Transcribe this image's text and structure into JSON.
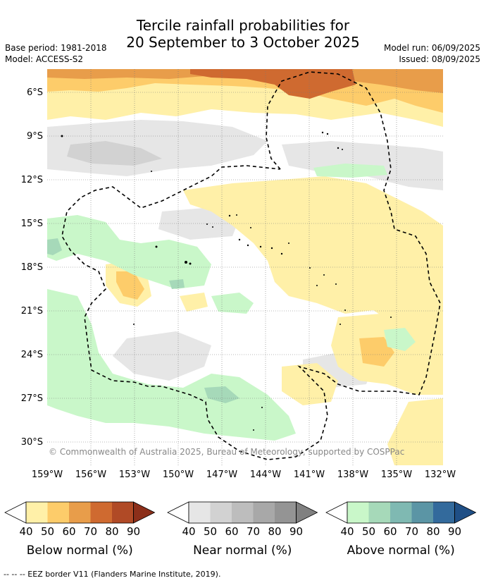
{
  "title_line1": "Tercile rainfall probabilities for",
  "title_line2": "20 September to 3 October 2025",
  "base_period": "Base period: 1981-2018",
  "model": "Model: ACCESS-S2",
  "model_run": "Model run: 06/09/2025",
  "issued": "Issued: 08/09/2025",
  "copyright": "© Commonwealth of Australia 2025, Bureau of Meteorology, supported by COSPPac",
  "lat_labels": [
    "6°S",
    "9°S",
    "12°S",
    "15°S",
    "18°S",
    "21°S",
    "24°S",
    "27°S",
    "30°S"
  ],
  "lon_labels": [
    "159°W",
    "156°W",
    "153°W",
    "150°W",
    "147°W",
    "144°W",
    "141°W",
    "138°W",
    "135°W",
    "132°W"
  ],
  "colorbars": [
    {
      "title": "Below normal (%)",
      "colors": [
        "#fff0a8",
        "#fdcc6a",
        "#e89d4a",
        "#cf6a30",
        "#b04a26",
        "#8c2f1a"
      ]
    },
    {
      "title": "Near normal (%)",
      "colors": [
        "#e6e6e6",
        "#d2d2d2",
        "#bdbdbd",
        "#a8a8a8",
        "#949494",
        "#808080"
      ]
    },
    {
      "title": "Above normal (%)",
      "colors": [
        "#c9f7c9",
        "#a6d9b9",
        "#7fb9b2",
        "#5b95a5",
        "#336a9c",
        "#1f4f86"
      ]
    }
  ],
  "ticks": [
    "40",
    "50",
    "60",
    "70",
    "80",
    "90"
  ],
  "eez_legend": "--  --  -- EEZ border V11 (Flanders Marine Institute, 2019).",
  "colors": {
    "below_40": "#fff0a8",
    "below_50": "#fdcc6a",
    "below_60": "#e89d4a",
    "below_70": "#cf6a30",
    "near_40": "#e6e6e6",
    "near_50": "#d2d2d2",
    "above_40": "#c9f7c9",
    "above_50": "#a6d9b9",
    "above_60": "#7fb9b2"
  }
}
